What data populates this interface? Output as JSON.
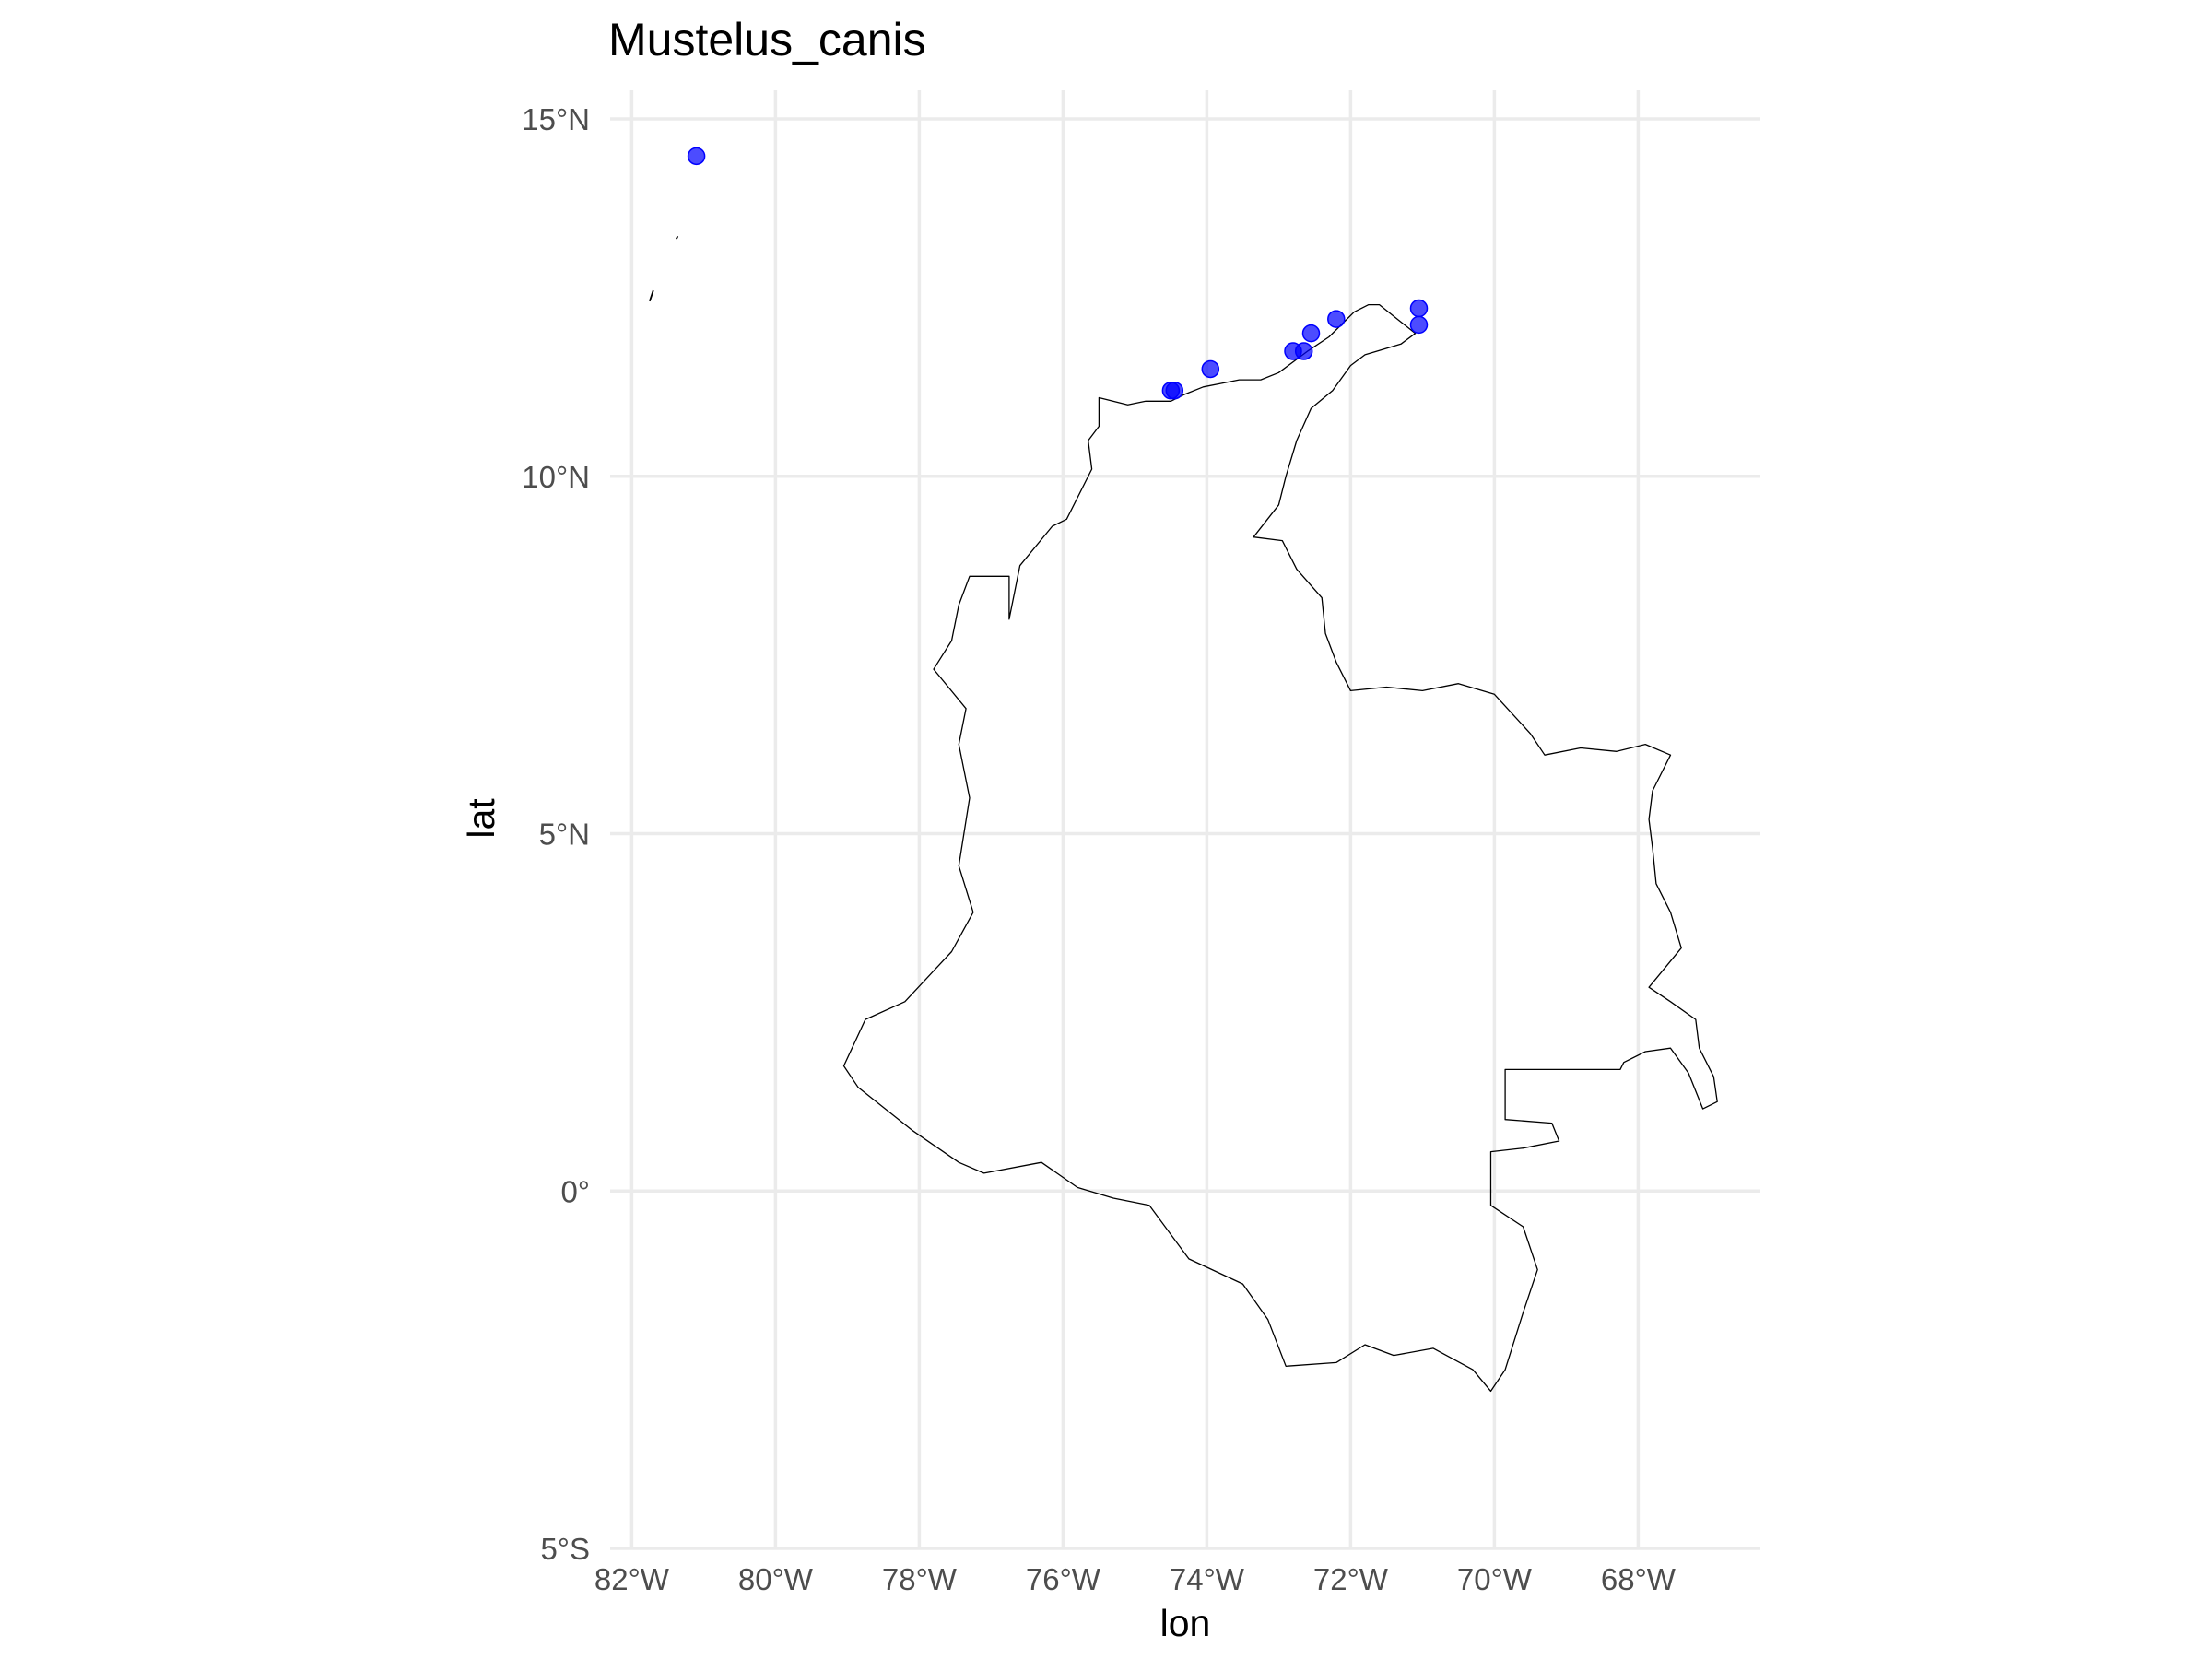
{
  "title": "Mustelus_canis",
  "axes": {
    "xlabel": "lon",
    "ylabel": "lat",
    "x_ticks": [
      {
        "value": -82,
        "label": "82°W"
      },
      {
        "value": -80,
        "label": "80°W"
      },
      {
        "value": -78,
        "label": "78°W"
      },
      {
        "value": -76,
        "label": "76°W"
      },
      {
        "value": -74,
        "label": "74°W"
      },
      {
        "value": -72,
        "label": "72°W"
      },
      {
        "value": -70,
        "label": "70°W"
      },
      {
        "value": -68,
        "label": "68°W"
      }
    ],
    "y_ticks": [
      {
        "value": 15,
        "label": "15°N"
      },
      {
        "value": 10,
        "label": "10°N"
      },
      {
        "value": 5,
        "label": "5°N"
      },
      {
        "value": 0,
        "label": "0°"
      },
      {
        "value": -5,
        "label": "5°S"
      }
    ]
  },
  "chart_data": {
    "type": "scatter",
    "title": "Mustelus_canis",
    "xlabel": "lon",
    "ylabel": "lat",
    "xlim": [
      -82.3,
      -66.3
    ],
    "ylim": [
      -5,
      15.4
    ],
    "grid": true,
    "point_color": "#0000ff",
    "outline_color": "#000000",
    "points": [
      {
        "lon": -81.1,
        "lat": 14.48
      },
      {
        "lon": -74.5,
        "lat": 11.2
      },
      {
        "lon": -74.45,
        "lat": 11.2
      },
      {
        "lon": -73.95,
        "lat": 11.5
      },
      {
        "lon": -72.8,
        "lat": 11.75
      },
      {
        "lon": -72.65,
        "lat": 11.75
      },
      {
        "lon": -72.55,
        "lat": 12.0
      },
      {
        "lon": -72.2,
        "lat": 12.2
      },
      {
        "lon": -71.05,
        "lat": 12.35
      },
      {
        "lon": -71.05,
        "lat": 12.12
      }
    ],
    "boundary": [
      [
        -75.5,
        11.1
      ],
      [
        -75.1,
        11.0
      ],
      [
        -74.85,
        11.05
      ],
      [
        -74.5,
        11.05
      ],
      [
        -74.3,
        11.15
      ],
      [
        -74.05,
        11.25
      ],
      [
        -73.8,
        11.3
      ],
      [
        -73.55,
        11.35
      ],
      [
        -73.25,
        11.35
      ],
      [
        -73.0,
        11.45
      ],
      [
        -72.6,
        11.75
      ],
      [
        -72.3,
        11.95
      ],
      [
        -72.1,
        12.15
      ],
      [
        -71.95,
        12.3
      ],
      [
        -71.75,
        12.4
      ],
      [
        -71.6,
        12.4
      ],
      [
        -71.35,
        12.2
      ],
      [
        -71.1,
        12.0
      ],
      [
        -71.3,
        11.85
      ],
      [
        -71.8,
        11.7
      ],
      [
        -72.0,
        11.55
      ],
      [
        -72.25,
        11.2
      ],
      [
        -72.55,
        10.95
      ],
      [
        -72.75,
        10.5
      ],
      [
        -72.9,
        10.0
      ],
      [
        -73.0,
        9.6
      ],
      [
        -73.35,
        9.15
      ],
      [
        -72.95,
        9.1
      ],
      [
        -72.75,
        8.7
      ],
      [
        -72.4,
        8.3
      ],
      [
        -72.35,
        7.8
      ],
      [
        -72.2,
        7.4
      ],
      [
        -72.0,
        7.0
      ],
      [
        -71.5,
        7.05
      ],
      [
        -71.0,
        7.0
      ],
      [
        -70.5,
        7.1
      ],
      [
        -70.0,
        6.95
      ],
      [
        -69.5,
        6.4
      ],
      [
        -69.3,
        6.1
      ],
      [
        -68.8,
        6.2
      ],
      [
        -68.3,
        6.15
      ],
      [
        -67.9,
        6.25
      ],
      [
        -67.55,
        6.1
      ],
      [
        -67.8,
        5.6
      ],
      [
        -67.85,
        5.2
      ],
      [
        -67.8,
        4.8
      ],
      [
        -67.75,
        4.3
      ],
      [
        -67.55,
        3.9
      ],
      [
        -67.4,
        3.4
      ],
      [
        -67.85,
        2.85
      ],
      [
        -67.55,
        2.65
      ],
      [
        -67.2,
        2.4
      ],
      [
        -67.15,
        2.0
      ],
      [
        -66.95,
        1.6
      ],
      [
        -66.9,
        1.25
      ],
      [
        -67.1,
        1.15
      ],
      [
        -67.3,
        1.65
      ],
      [
        -67.55,
        2.0
      ],
      [
        -67.9,
        1.95
      ],
      [
        -68.2,
        1.8
      ],
      [
        -68.25,
        1.7
      ],
      [
        -69.85,
        1.7
      ],
      [
        -69.85,
        1.0
      ],
      [
        -69.2,
        0.95
      ],
      [
        -69.1,
        0.7
      ],
      [
        -69.6,
        0.6
      ],
      [
        -70.05,
        0.55
      ],
      [
        -70.05,
        -0.2
      ],
      [
        -69.6,
        -0.5
      ],
      [
        -69.4,
        -1.1
      ],
      [
        -69.6,
        -1.7
      ],
      [
        -69.85,
        -2.5
      ],
      [
        -70.05,
        -2.8
      ],
      [
        -70.3,
        -2.5
      ],
      [
        -70.85,
        -2.2
      ],
      [
        -71.4,
        -2.3
      ],
      [
        -71.8,
        -2.15
      ],
      [
        -72.2,
        -2.4
      ],
      [
        -72.9,
        -2.45
      ],
      [
        -73.15,
        -1.8
      ],
      [
        -73.5,
        -1.3
      ],
      [
        -74.25,
        -0.95
      ],
      [
        -74.8,
        -0.2
      ],
      [
        -75.3,
        -0.1
      ],
      [
        -75.8,
        0.05
      ],
      [
        -76.3,
        0.4
      ],
      [
        -77.1,
        0.25
      ],
      [
        -77.45,
        0.4
      ],
      [
        -78.1,
        0.85
      ],
      [
        -78.85,
        1.45
      ],
      [
        -79.05,
        1.75
      ],
      [
        -78.75,
        2.4
      ],
      [
        -78.2,
        2.65
      ],
      [
        -77.55,
        3.35
      ],
      [
        -77.25,
        3.9
      ],
      [
        -77.45,
        4.55
      ],
      [
        -77.3,
        5.5
      ],
      [
        -77.45,
        6.25
      ],
      [
        -77.35,
        6.75
      ],
      [
        -77.8,
        7.3
      ],
      [
        -77.55,
        7.7
      ],
      [
        -77.45,
        8.2
      ],
      [
        -77.3,
        8.6
      ],
      [
        -76.75,
        8.6
      ],
      [
        -76.75,
        8.0
      ],
      [
        -76.6,
        8.75
      ],
      [
        -76.15,
        9.3
      ],
      [
        -75.95,
        9.4
      ],
      [
        -75.6,
        10.1
      ],
      [
        -75.65,
        10.5
      ],
      [
        -75.5,
        10.7
      ],
      [
        -75.5,
        11.1
      ]
    ],
    "islands": [
      [
        [
          -81.75,
          12.45
        ],
        [
          -81.7,
          12.6
        ]
      ],
      [
        [
          -81.38,
          13.32
        ],
        [
          -81.36,
          13.36
        ]
      ]
    ]
  }
}
